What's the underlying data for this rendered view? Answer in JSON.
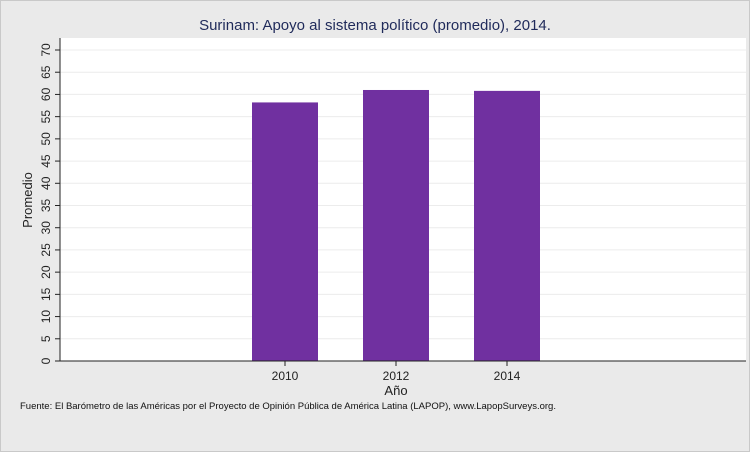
{
  "chart_data": {
    "type": "bar",
    "title": "Surinam: Apoyo al sistema político (promedio), 2014.",
    "xlabel": "Año",
    "ylabel": "Promedio",
    "categories": [
      "2010",
      "2012",
      "2014"
    ],
    "values": [
      58.2,
      61.0,
      60.8
    ],
    "ylim": [
      0,
      70
    ],
    "yticks": [
      0,
      5,
      10,
      15,
      20,
      25,
      30,
      35,
      40,
      45,
      50,
      55,
      60,
      65,
      70
    ],
    "grid": true,
    "bar_color": "#7030a0"
  },
  "source_note": "Fuente: El Barómetro de las Américas por el Proyecto de Opinión Pública de América Latina (LAPOP), www.LapopSurveys.org."
}
